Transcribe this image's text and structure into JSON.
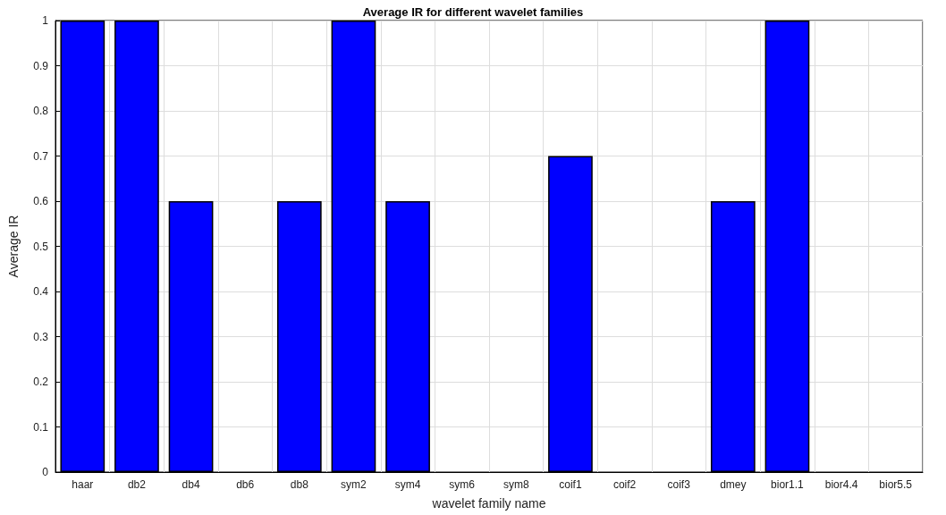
{
  "chart_data": {
    "type": "bar",
    "title": "Average IR for different wavelet families",
    "xlabel": "wavelet family name",
    "ylabel": "Average IR",
    "categories": [
      "haar",
      "db2",
      "db4",
      "db6",
      "db8",
      "sym2",
      "sym4",
      "sym6",
      "sym8",
      "coif1",
      "coif2",
      "coif3",
      "dmey",
      "bior1.1",
      "bior4.4",
      "bior5.5"
    ],
    "values": [
      1,
      1,
      0.6,
      0,
      0.6,
      1,
      0.6,
      0,
      0,
      0.7,
      0,
      0,
      0.6,
      1,
      0,
      0
    ],
    "color": "#0000ff",
    "ylim": [
      0,
      1
    ],
    "yticks": [
      0,
      0.1,
      0.2,
      0.3,
      0.4,
      0.5,
      0.6,
      0.7,
      0.8,
      0.9,
      1
    ],
    "grid": true
  }
}
